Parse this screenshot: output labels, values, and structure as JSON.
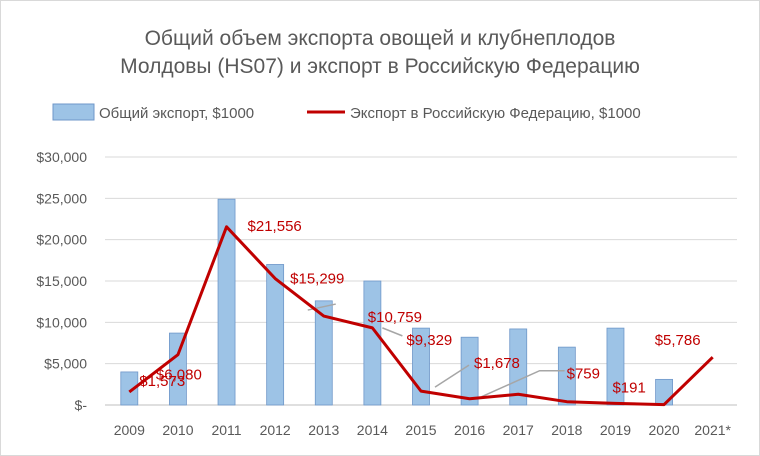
{
  "chart_data": {
    "type": "bar",
    "title_line1": "Общий объем экспорта овощей и клубнеплодов",
    "title_line2": "Молдовы (HS07) и экспорт в Российскую Федерацию",
    "categories": [
      "2009",
      "2010",
      "2011",
      "2012",
      "2013",
      "2014",
      "2015",
      "2016",
      "2017",
      "2018",
      "2019",
      "2020",
      "2021*"
    ],
    "y_tick_labels": [
      "$-",
      "$5,000",
      "$10,000",
      "$15,000",
      "$20,000",
      "$25,000",
      "$30,000"
    ],
    "ylim": [
      0,
      30000
    ],
    "grid": true,
    "legend_position": "top",
    "series": [
      {
        "name": "Общий экспорт, $1000",
        "kind": "bar",
        "color": "#9dc3e6",
        "values": [
          4000,
          8700,
          24900,
          17000,
          12600,
          15000,
          9300,
          8200,
          9200,
          7000,
          9300,
          3100,
          null
        ]
      },
      {
        "name": "Экспорт в Российскую Федерацию, $1000",
        "kind": "line",
        "color": "#c00000",
        "values": [
          1573,
          6080,
          21556,
          15299,
          10759,
          9329,
          1678,
          759,
          1300,
          400,
          191,
          50,
          5786
        ]
      }
    ],
    "annotations": [
      {
        "text": "$1,573",
        "index": 0
      },
      {
        "text": "$6,080",
        "index": 1
      },
      {
        "text": "$21,556",
        "index": 2
      },
      {
        "text": "$15,299",
        "index": 3
      },
      {
        "text": "$10,759",
        "index": 4
      },
      {
        "text": "$9,329",
        "index": 5
      },
      {
        "text": "$1,678",
        "index": 6
      },
      {
        "text": "$759",
        "index": 7
      },
      {
        "text": "$191",
        "index": 10
      },
      {
        "text": "$5,786",
        "index": 12
      }
    ]
  }
}
